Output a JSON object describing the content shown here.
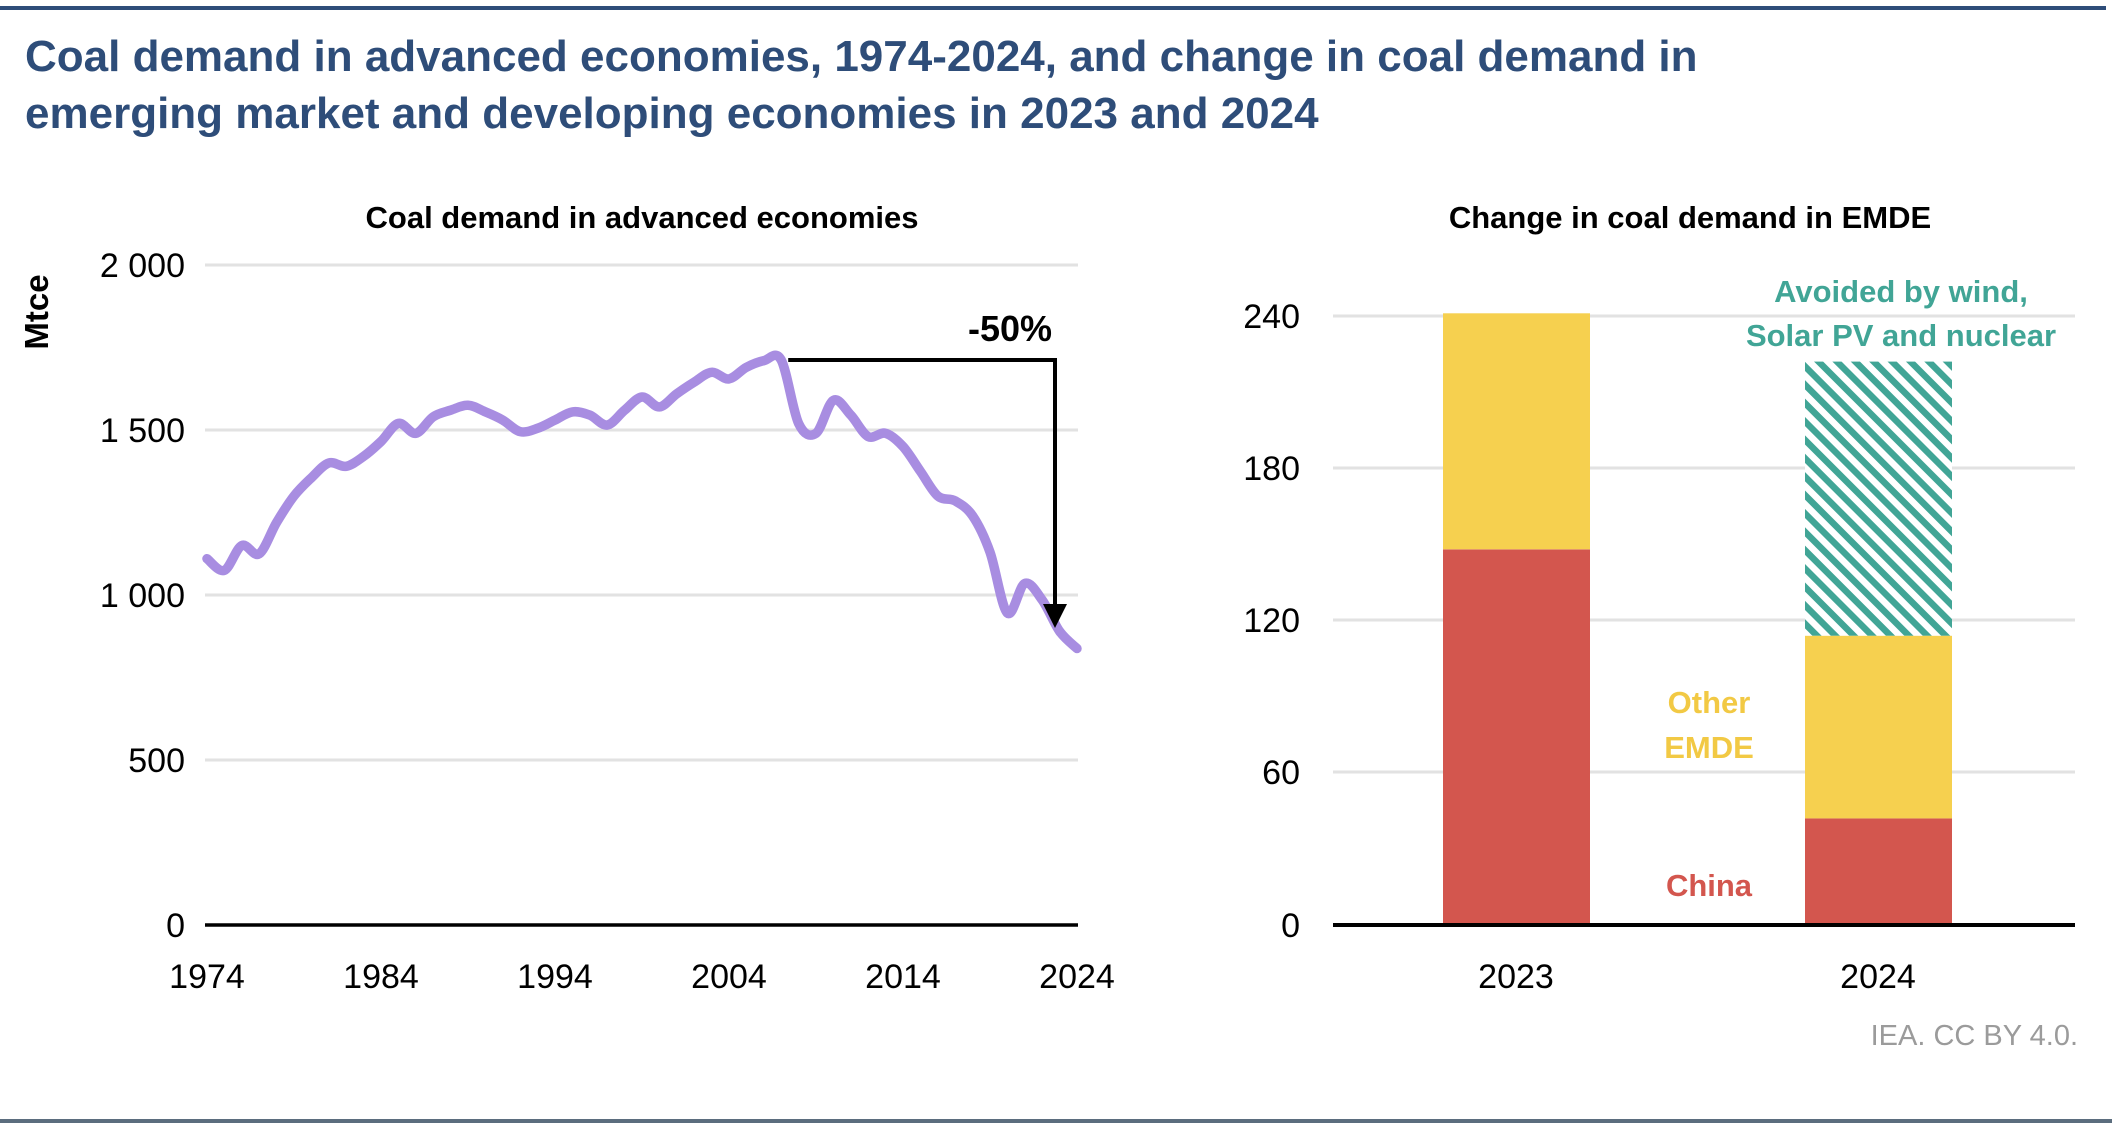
{
  "page": {
    "title": "Coal demand in advanced economies, 1974-2024, and change in coal demand in\nemerging market and developing economies in 2023 and 2024",
    "footer": "IEA. CC BY 4.0."
  },
  "colors": {
    "navy": "#2e4d79",
    "purple": "#a88de1",
    "red": "#d3564e",
    "yellow": "#f6d04f",
    "yellow_text": "#f2c944",
    "teal": "#41a596",
    "grid": "#e2e2e2",
    "footer_gray": "#9b9b9b",
    "bottom_rule": "#5b6d7e"
  },
  "chart_data": [
    {
      "type": "line",
      "title": "Coal demand in advanced economies",
      "ylabel": "Mtce",
      "grid": true,
      "legend": "none",
      "line_color": "#a88de1",
      "ylim": [
        0,
        2000
      ],
      "yticks": [
        2000,
        1500,
        1000,
        500,
        0
      ],
      "ytick_labels": [
        "2 000",
        "1 500",
        "1 000",
        "500",
        "0"
      ],
      "xticks": [
        1974,
        1984,
        1994,
        2004,
        2014,
        2024
      ],
      "xtick_labels": [
        "1974",
        "1984",
        "1994",
        "2004",
        "2014",
        "2024"
      ],
      "x": [
        1974,
        1975,
        1976,
        1977,
        1978,
        1979,
        1980,
        1981,
        1982,
        1983,
        1984,
        1985,
        1986,
        1987,
        1988,
        1989,
        1990,
        1991,
        1992,
        1993,
        1994,
        1995,
        1996,
        1997,
        1998,
        1999,
        2000,
        2001,
        2002,
        2003,
        2004,
        2005,
        2006,
        2007,
        2008,
        2009,
        2010,
        2011,
        2012,
        2013,
        2014,
        2015,
        2016,
        2017,
        2018,
        2019,
        2020,
        2021,
        2022,
        2023,
        2024
      ],
      "y": [
        1110,
        1075,
        1150,
        1125,
        1220,
        1300,
        1355,
        1400,
        1390,
        1420,
        1465,
        1520,
        1490,
        1540,
        1560,
        1575,
        1555,
        1530,
        1495,
        1505,
        1530,
        1555,
        1545,
        1515,
        1560,
        1600,
        1570,
        1610,
        1645,
        1675,
        1655,
        1690,
        1710,
        1712,
        1520,
        1490,
        1590,
        1545,
        1480,
        1490,
        1450,
        1375,
        1300,
        1285,
        1240,
        1130,
        945,
        1035,
        985,
        890,
        838
      ],
      "annotation": {
        "label": "-50%",
        "from_year": 2007,
        "to_year": 2024,
        "level": 1712,
        "arrow_to": 900
      }
    },
    {
      "type": "bar",
      "title": "Change in coal demand in EMDE",
      "stacked": true,
      "grid": true,
      "categories": [
        "2023",
        "2024"
      ],
      "series": [
        {
          "name": "China",
          "color": "#d3564e",
          "hatch": false,
          "values": [
            148,
            42
          ]
        },
        {
          "name": "Other EMDE",
          "color": "#f6d04f",
          "hatch": false,
          "values": [
            93,
            72
          ]
        },
        {
          "name": "Avoided by wind, Solar PV and nuclear",
          "color": "#41a596",
          "hatch": true,
          "values": [
            0,
            108
          ]
        }
      ],
      "ylim": [
        0,
        270
      ],
      "yticks": [
        240,
        180,
        120,
        60,
        0
      ],
      "ytick_labels": [
        "240",
        "180",
        "120",
        "60",
        "0"
      ],
      "labels": {
        "other": "Other\nEMDE",
        "china": "China",
        "avoided": "Avoided by wind,\nSolar PV and nuclear",
        "minus50": "-50%"
      }
    }
  ]
}
